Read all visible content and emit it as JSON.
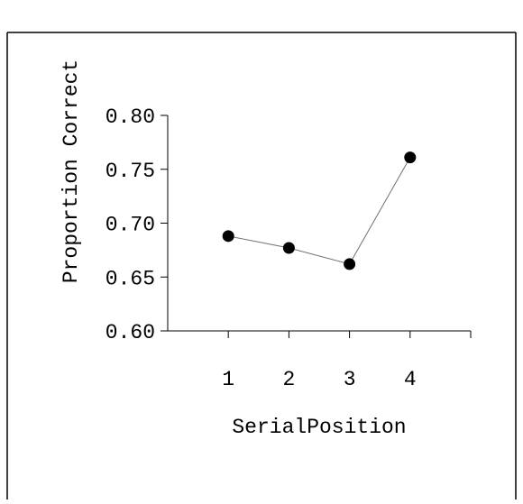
{
  "chart_data": {
    "type": "line",
    "title": "",
    "xlabel": "SerialPosition",
    "ylabel": "Proportion Correct",
    "x": [
      1,
      2,
      3,
      4
    ],
    "values": [
      0.688,
      0.677,
      0.662,
      0.761
    ],
    "x_ticks": [
      "1",
      "2",
      "3",
      "4"
    ],
    "y_ticks": [
      "0.60",
      "0.65",
      "0.70",
      "0.75",
      "0.80"
    ],
    "xlim": [
      0,
      5
    ],
    "ylim": [
      0.6,
      0.8
    ],
    "grid": false,
    "legend": "none",
    "colors": {
      "line": "#707070",
      "marker": "#000000",
      "frame": "#000000"
    }
  }
}
